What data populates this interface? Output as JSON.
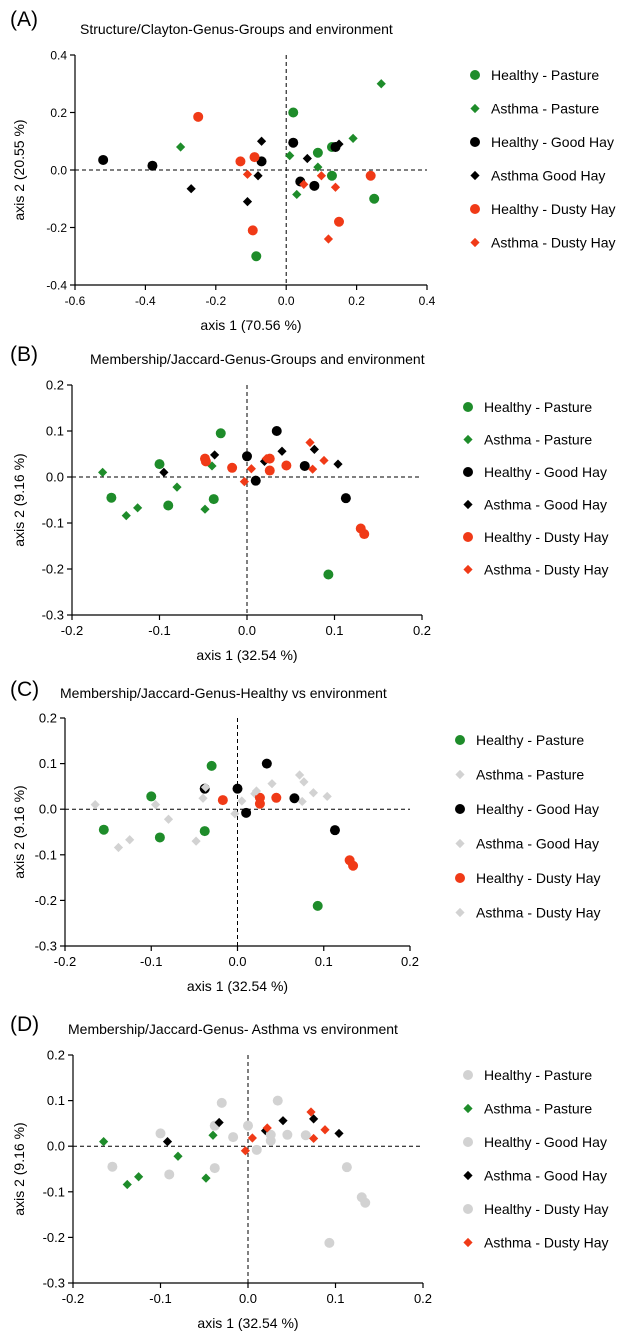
{
  "colors": {
    "green": "#1e8c2a",
    "black": "#000000",
    "red": "#f03a17",
    "gray": "#d2d2d2"
  },
  "chart_data": [
    {
      "panel_label": "(A)",
      "type": "scatter",
      "title": "Structure/Clayton-Genus-Groups and environment",
      "xlabel": "axis 1 (70.56 %)",
      "ylabel": "axis 2 (20.55 %)",
      "xlim": [
        -0.6,
        0.4
      ],
      "ylim": [
        -0.4,
        0.4
      ],
      "xticks": [
        -0.6,
        -0.4,
        -0.2,
        0.0,
        0.2,
        0.4
      ],
      "yticks": [
        -0.4,
        -0.2,
        0.0,
        0.2,
        0.4
      ],
      "xtick_labels": [
        "-0.6",
        "-0.4",
        "-0.2",
        "0.0",
        "0.2",
        "0.4"
      ],
      "ytick_labels": [
        "-0.4",
        "-0.2",
        "0.0",
        "0.2",
        "0.4"
      ],
      "legend_position": "right",
      "series": [
        {
          "name": "Healthy - Pasture",
          "marker": "circle",
          "color": "green",
          "points": [
            [
              0.02,
              0.2
            ],
            [
              0.13,
              0.08
            ],
            [
              0.09,
              0.06
            ],
            [
              0.13,
              -0.02
            ],
            [
              0.25,
              -0.1
            ],
            [
              -0.085,
              -0.3
            ]
          ]
        },
        {
          "name": "Asthma - Pasture",
          "marker": "diamond",
          "color": "green",
          "points": [
            [
              0.27,
              0.3
            ],
            [
              -0.3,
              0.08
            ],
            [
              0.19,
              0.11
            ],
            [
              0.01,
              0.05
            ],
            [
              0.09,
              0.01
            ],
            [
              0.03,
              -0.085
            ]
          ]
        },
        {
          "name": "Healthy - Good Hay",
          "marker": "circle",
          "color": "black",
          "points": [
            [
              -0.52,
              0.035
            ],
            [
              -0.38,
              0.015
            ],
            [
              0.02,
              0.095
            ],
            [
              -0.07,
              0.03
            ],
            [
              0.04,
              -0.04
            ],
            [
              0.08,
              -0.055
            ],
            [
              0.14,
              0.08
            ]
          ]
        },
        {
          "name": "Asthma Good Hay",
          "marker": "diamond",
          "color": "black",
          "points": [
            [
              -0.07,
              0.1
            ],
            [
              0.15,
              0.09
            ],
            [
              0.06,
              0.04
            ],
            [
              -0.27,
              -0.065
            ],
            [
              -0.11,
              -0.11
            ],
            [
              -0.08,
              -0.02
            ]
          ]
        },
        {
          "name": "Healthy - Dusty Hay",
          "marker": "circle",
          "color": "red",
          "points": [
            [
              -0.25,
              0.185
            ],
            [
              -0.13,
              0.03
            ],
            [
              -0.09,
              0.045
            ],
            [
              0.24,
              -0.02
            ],
            [
              0.15,
              -0.18
            ],
            [
              -0.095,
              -0.21
            ]
          ]
        },
        {
          "name": "Asthma - Dusty Hay",
          "marker": "diamond",
          "color": "red",
          "points": [
            [
              -0.11,
              -0.015
            ],
            [
              0.05,
              -0.05
            ],
            [
              0.1,
              -0.02
            ],
            [
              0.14,
              -0.06
            ],
            [
              0.12,
              -0.24
            ]
          ]
        }
      ]
    },
    {
      "panel_label": "(B)",
      "type": "scatter",
      "title": "Membership/Jaccard-Genus-Groups and environment",
      "xlabel": "axis 1 (32.54 %)",
      "ylabel": "axis 2 (9.16 %)",
      "xlim": [
        -0.2,
        0.2
      ],
      "ylim": [
        -0.3,
        0.2
      ],
      "xticks": [
        -0.2,
        -0.1,
        0.0,
        0.1,
        0.2
      ],
      "yticks": [
        -0.3,
        -0.2,
        -0.1,
        0.0,
        0.1,
        0.2
      ],
      "xtick_labels": [
        "-0.2",
        "-0.1",
        "0.0",
        "0.1",
        "0.2"
      ],
      "ytick_labels": [
        "-0.3",
        "-0.2",
        "-0.1",
        "0.0",
        "0.1",
        "0.2"
      ],
      "legend_position": "right",
      "series": [
        {
          "name": "Healthy - Pasture",
          "marker": "circle",
          "color": "green",
          "points": [
            [
              -0.03,
              0.095
            ],
            [
              -0.1,
              0.028
            ],
            [
              -0.155,
              -0.045
            ],
            [
              -0.09,
              -0.062
            ],
            [
              -0.038,
              -0.048
            ],
            [
              0.093,
              -0.212
            ]
          ]
        },
        {
          "name": "Asthma - Pasture",
          "marker": "diamond",
          "color": "green",
          "points": [
            [
              -0.165,
              0.01
            ],
            [
              -0.04,
              0.024
            ],
            [
              -0.08,
              -0.022
            ],
            [
              -0.125,
              -0.067
            ],
            [
              -0.138,
              -0.084
            ],
            [
              -0.048,
              -0.07
            ]
          ]
        },
        {
          "name": "Healthy - Good Hay",
          "marker": "circle",
          "color": "black",
          "points": [
            [
              0.034,
              0.1
            ],
            [
              0.0,
              0.045
            ],
            [
              0.066,
              0.024
            ],
            [
              0.01,
              -0.008
            ],
            [
              0.113,
              -0.046
            ]
          ]
        },
        {
          "name": "Asthma - Good Hay",
          "marker": "diamond",
          "color": "black",
          "points": [
            [
              -0.037,
              0.048
            ],
            [
              0.04,
              0.056
            ],
            [
              0.077,
              0.06
            ],
            [
              0.02,
              0.034
            ],
            [
              0.104,
              0.028
            ],
            [
              -0.095,
              0.01
            ]
          ]
        },
        {
          "name": "Healthy - Dusty Hay",
          "marker": "circle",
          "color": "red",
          "points": [
            [
              -0.048,
              0.04
            ],
            [
              -0.047,
              0.034
            ],
            [
              0.026,
              0.04
            ],
            [
              0.045,
              0.025
            ],
            [
              -0.017,
              0.02
            ],
            [
              0.026,
              0.014
            ],
            [
              0.13,
              -0.112
            ],
            [
              0.134,
              -0.124
            ]
          ]
        },
        {
          "name": "Asthma - Dusty Hay",
          "marker": "diamond",
          "color": "red",
          "points": [
            [
              0.072,
              0.075
            ],
            [
              0.088,
              0.036
            ],
            [
              0.022,
              0.04
            ],
            [
              0.075,
              0.017
            ],
            [
              0.005,
              0.018
            ],
            [
              -0.003,
              -0.01
            ]
          ]
        }
      ]
    },
    {
      "panel_label": "(C)",
      "type": "scatter",
      "title": "Membership/Jaccard-Genus-Healthy vs environment",
      "xlabel": "axis 1 (32.54 %)",
      "ylabel": "axis 2 (9.16 %)",
      "xlim": [
        -0.2,
        0.2
      ],
      "ylim": [
        -0.3,
        0.2
      ],
      "xticks": [
        -0.2,
        -0.1,
        0.0,
        0.1,
        0.2
      ],
      "yticks": [
        -0.3,
        -0.2,
        -0.1,
        0.0,
        0.1,
        0.2
      ],
      "xtick_labels": [
        "-0.2",
        "-0.1",
        "0.0",
        "0.1",
        "0.2"
      ],
      "ytick_labels": [
        "-0.3",
        "-0.2",
        "-0.1",
        "0.0",
        "0.1",
        "0.2"
      ],
      "legend_position": "right",
      "series": [
        {
          "name": "Healthy - Pasture",
          "marker": "circle",
          "color": "green",
          "points": [
            [
              -0.03,
              0.095
            ],
            [
              -0.1,
              0.028
            ],
            [
              -0.155,
              -0.045
            ],
            [
              -0.09,
              -0.062
            ],
            [
              -0.038,
              -0.048
            ],
            [
              0.093,
              -0.212
            ]
          ]
        },
        {
          "name": "Asthma - Pasture",
          "marker": "diamond",
          "color": "gray",
          "points": [
            [
              -0.165,
              0.01
            ],
            [
              -0.04,
              0.024
            ],
            [
              -0.08,
              -0.022
            ],
            [
              -0.125,
              -0.067
            ],
            [
              -0.138,
              -0.084
            ],
            [
              -0.048,
              -0.07
            ]
          ]
        },
        {
          "name": "Healthy - Good Hay",
          "marker": "circle",
          "color": "black",
          "points": [
            [
              0.034,
              0.1
            ],
            [
              0.0,
              0.045
            ],
            [
              0.066,
              0.024
            ],
            [
              0.01,
              -0.008
            ],
            [
              0.113,
              -0.046
            ],
            [
              -0.038,
              0.045
            ]
          ]
        },
        {
          "name": "Asthma - Good Hay",
          "marker": "diamond",
          "color": "gray",
          "points": [
            [
              -0.037,
              0.048
            ],
            [
              0.04,
              0.056
            ],
            [
              0.077,
              0.06
            ],
            [
              0.02,
              0.034
            ],
            [
              0.104,
              0.028
            ],
            [
              -0.095,
              0.01
            ]
          ]
        },
        {
          "name": "Healthy - Dusty Hay",
          "marker": "circle",
          "color": "red",
          "points": [
            [
              0.026,
              0.025
            ],
            [
              0.045,
              0.025
            ],
            [
              -0.017,
              0.02
            ],
            [
              0.026,
              0.012
            ],
            [
              0.13,
              -0.112
            ],
            [
              0.134,
              -0.124
            ]
          ]
        },
        {
          "name": "Asthma - Dusty Hay",
          "marker": "diamond",
          "color": "gray",
          "points": [
            [
              0.072,
              0.075
            ],
            [
              0.088,
              0.036
            ],
            [
              0.022,
              0.04
            ],
            [
              0.075,
              0.017
            ],
            [
              0.005,
              0.018
            ],
            [
              -0.003,
              -0.01
            ]
          ]
        }
      ]
    },
    {
      "panel_label": "(D)",
      "type": "scatter",
      "title": "Membership/Jaccard-Genus- Asthma vs environment",
      "xlabel": "axis 1 (32.54 %)",
      "ylabel": "axis 2 (9.16 %)",
      "xlim": [
        -0.2,
        0.2
      ],
      "ylim": [
        -0.3,
        0.2
      ],
      "xticks": [
        -0.2,
        -0.1,
        0.0,
        0.1,
        0.2
      ],
      "yticks": [
        -0.3,
        -0.2,
        -0.1,
        0.0,
        0.1,
        0.2
      ],
      "xtick_labels": [
        "-0.2",
        "-0.1",
        "0.0",
        "0.1",
        "0.2"
      ],
      "ytick_labels": [
        "-0.3",
        "-0.2",
        "-0.1",
        "0.0",
        "0.1",
        "0.2"
      ],
      "legend_position": "right",
      "series": [
        {
          "name": "Healthy - Pasture",
          "marker": "circle",
          "color": "gray",
          "points": [
            [
              -0.03,
              0.095
            ],
            [
              -0.1,
              0.028
            ],
            [
              -0.155,
              -0.045
            ],
            [
              -0.09,
              -0.062
            ],
            [
              -0.038,
              -0.048
            ],
            [
              0.093,
              -0.212
            ]
          ]
        },
        {
          "name": "Asthma - Pasture",
          "marker": "diamond",
          "color": "green",
          "points": [
            [
              -0.165,
              0.01
            ],
            [
              -0.04,
              0.024
            ],
            [
              -0.08,
              -0.022
            ],
            [
              -0.125,
              -0.067
            ],
            [
              -0.138,
              -0.084
            ],
            [
              -0.048,
              -0.07
            ]
          ]
        },
        {
          "name": "Healthy - Good Hay",
          "marker": "circle",
          "color": "gray",
          "points": [
            [
              0.034,
              0.1
            ],
            [
              0.0,
              0.045
            ],
            [
              0.066,
              0.024
            ],
            [
              0.01,
              -0.008
            ],
            [
              0.113,
              -0.046
            ],
            [
              -0.038,
              0.045
            ]
          ]
        },
        {
          "name": "Asthma - Good Hay",
          "marker": "diamond",
          "color": "black",
          "points": [
            [
              -0.033,
              0.052
            ],
            [
              0.04,
              0.056
            ],
            [
              0.075,
              0.06
            ],
            [
              0.02,
              0.034
            ],
            [
              0.104,
              0.028
            ],
            [
              -0.092,
              0.01
            ]
          ]
        },
        {
          "name": "Healthy - Dusty Hay",
          "marker": "circle",
          "color": "gray",
          "points": [
            [
              0.026,
              0.025
            ],
            [
              0.045,
              0.025
            ],
            [
              -0.017,
              0.02
            ],
            [
              0.026,
              0.012
            ],
            [
              0.13,
              -0.112
            ],
            [
              0.134,
              -0.124
            ]
          ]
        },
        {
          "name": "Asthma - Dusty Hay",
          "marker": "diamond",
          "color": "red",
          "points": [
            [
              0.072,
              0.075
            ],
            [
              0.088,
              0.036
            ],
            [
              0.022,
              0.04
            ],
            [
              0.075,
              0.017
            ],
            [
              0.005,
              0.018
            ],
            [
              -0.003,
              -0.01
            ]
          ]
        }
      ]
    }
  ]
}
